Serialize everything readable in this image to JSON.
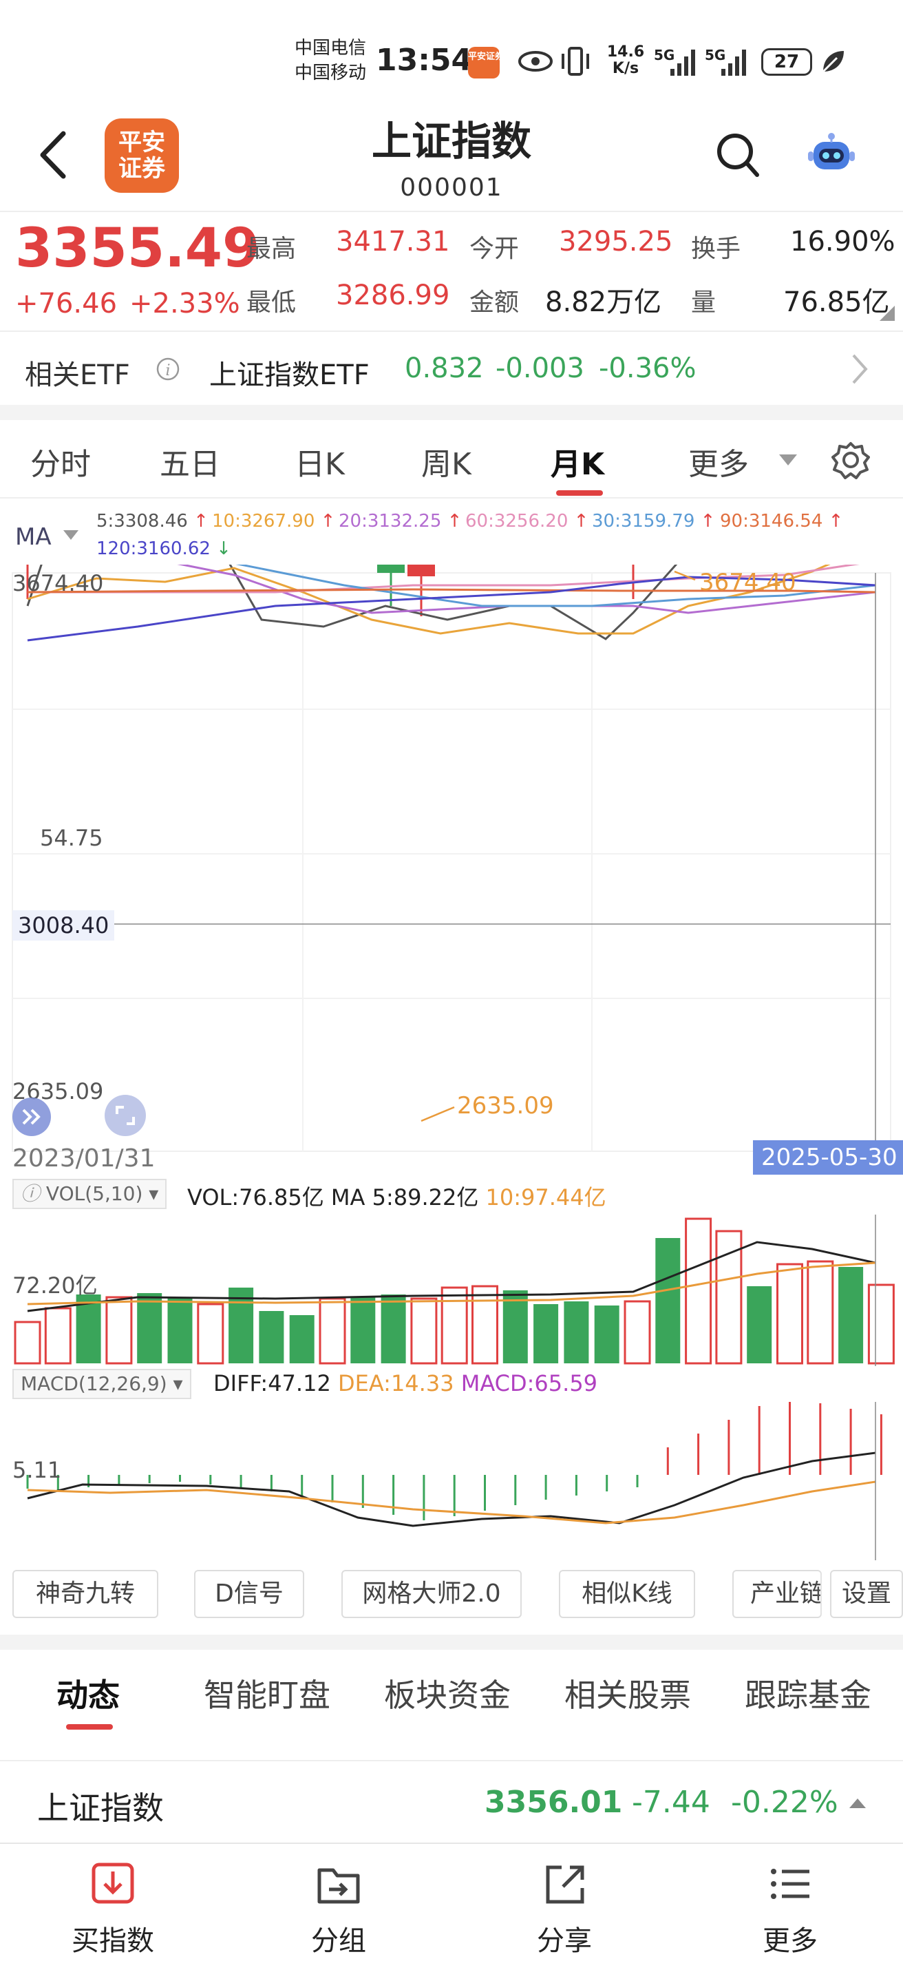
{
  "status_bar": {
    "carrier1": "中国电信",
    "carrier2": "中国移动",
    "time": "13:54",
    "app_badge": "平安证券",
    "speed_value": "14.6",
    "speed_unit": "K/s",
    "net1": "5G",
    "net2": "5G",
    "battery": "27"
  },
  "header": {
    "logo_line1": "平安",
    "logo_line2": "证券",
    "title": "上证指数",
    "code": "000001"
  },
  "quote": {
    "price": "3355.49",
    "change": "+76.46",
    "change_pct": "+2.33%",
    "high_label": "最高",
    "high": "3417.31",
    "low_label": "最低",
    "low": "3286.99",
    "open_label": "今开",
    "open": "3295.25",
    "amount_label": "金额",
    "amount": "8.82万亿",
    "turnover_label": "换手",
    "turnover": "16.90%",
    "volume_label": "量",
    "volume": "76.85亿"
  },
  "etf": {
    "label": "相关ETF",
    "name": "上证指数ETF",
    "price": "0.832",
    "change": "-0.003",
    "change_pct": "-0.36%"
  },
  "period_tabs": [
    "分时",
    "五日",
    "日K",
    "周K",
    "月K",
    "更多"
  ],
  "active_period": "月K",
  "ma_legend": {
    "selector": "MA",
    "items": [
      {
        "text": "5:3308.46",
        "color": "#555555"
      },
      {
        "text": "10:3267.90",
        "color": "#e9a43a"
      },
      {
        "text": "20:3132.25",
        "color": "#b36cd0"
      },
      {
        "text": "60:3256.20",
        "color": "#e48fb8"
      },
      {
        "text": "30:3159.79",
        "color": "#5b9bd5"
      },
      {
        "text": "90:3146.54",
        "color": "#e07040"
      },
      {
        "text": "120:3160.62",
        "color": "#4a45c8"
      }
    ]
  },
  "kline": {
    "y_top_label": "3674.40",
    "y_mid_label": "54.75",
    "y_bottom_label": "2635.09",
    "crosshair_value": "3008.40",
    "max_marker": "3674.40",
    "min_marker": "2635.09",
    "date_start": "2023/01/31",
    "date_end": "2025-05-30"
  },
  "volume": {
    "selector": "VOL(5,10)",
    "vol_text": "VOL:76.85亿",
    "ma5_text": "MA 5:89.22亿",
    "ma10_text": "10:97.44亿",
    "axis_label": "72.20亿"
  },
  "macd": {
    "selector": "MACD(12,26,9)",
    "diff": "DIFF:47.12",
    "dea": "DEA:14.33",
    "macd": "MACD:65.59",
    "axis_label": "5.11"
  },
  "tool_buttons": [
    "神奇九转",
    "D信号",
    "网格大师2.0",
    "相似K线",
    "产业链",
    "设置"
  ],
  "bottom_tabs": [
    "动态",
    "智能盯盘",
    "板块资金",
    "相关股票",
    "跟踪基金"
  ],
  "active_bottom_tab": "动态",
  "ticker": {
    "name": "上证指数",
    "price": "3356.01",
    "change": "-7.44",
    "change_pct": "-0.22%"
  },
  "nav": [
    {
      "label": "买指数",
      "icon": "buy-icon"
    },
    {
      "label": "分组",
      "icon": "group-icon"
    },
    {
      "label": "分享",
      "icon": "share-icon"
    },
    {
      "label": "更多",
      "icon": "menu-icon"
    }
  ],
  "colors": {
    "up": "#e04040",
    "down": "#3aa55a",
    "accent": "#ea6a2f",
    "marker": "#e99a3a"
  }
}
